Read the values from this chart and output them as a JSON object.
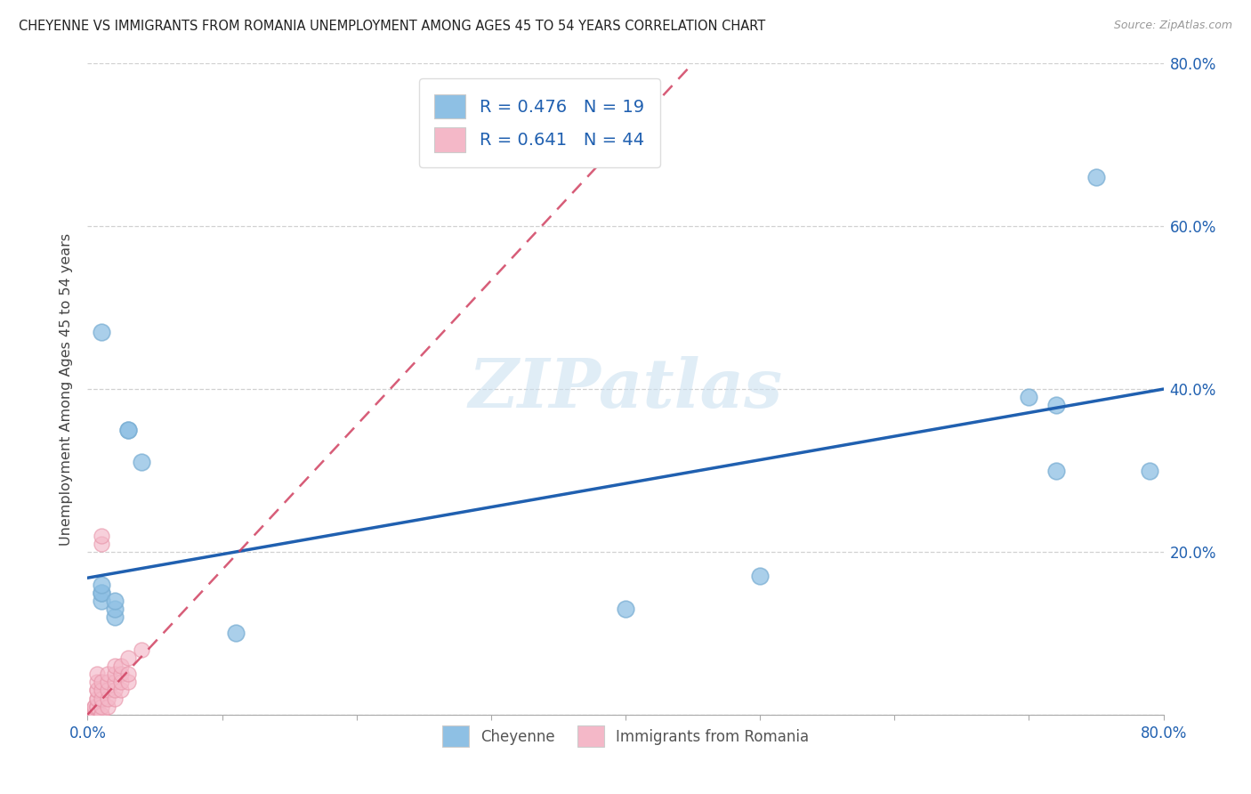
{
  "title": "CHEYENNE VS IMMIGRANTS FROM ROMANIA UNEMPLOYMENT AMONG AGES 45 TO 54 YEARS CORRELATION CHART",
  "source": "Source: ZipAtlas.com",
  "ylabel": "Unemployment Among Ages 45 to 54 years",
  "xlim": [
    0.0,
    0.8
  ],
  "ylim": [
    0.0,
    0.8
  ],
  "cheyenne_color": "#8ec0e4",
  "cheyenne_edge": "#7bafd4",
  "romania_color": "#f4b8c8",
  "romania_edge": "#e896aa",
  "trend_cheyenne_color": "#2060b0",
  "trend_romania_color": "#d04060",
  "legend_text_color": "#2060b0",
  "legend_R_cheyenne": "0.476",
  "legend_N_cheyenne": "19",
  "legend_R_romania": "0.641",
  "legend_N_romania": "44",
  "cheyenne_x": [
    0.01,
    0.01,
    0.01,
    0.01,
    0.01,
    0.02,
    0.02,
    0.02,
    0.03,
    0.03,
    0.04,
    0.11,
    0.4,
    0.5,
    0.7,
    0.72,
    0.72,
    0.75,
    0.79
  ],
  "cheyenne_y": [
    0.14,
    0.15,
    0.15,
    0.16,
    0.47,
    0.12,
    0.13,
    0.14,
    0.35,
    0.35,
    0.31,
    0.1,
    0.13,
    0.17,
    0.39,
    0.3,
    0.38,
    0.66,
    0.3
  ],
  "romania_x": [
    0.005,
    0.005,
    0.005,
    0.005,
    0.005,
    0.005,
    0.005,
    0.005,
    0.005,
    0.005,
    0.007,
    0.007,
    0.007,
    0.007,
    0.007,
    0.007,
    0.007,
    0.007,
    0.01,
    0.01,
    0.01,
    0.01,
    0.01,
    0.01,
    0.01,
    0.01,
    0.015,
    0.015,
    0.015,
    0.015,
    0.015,
    0.02,
    0.02,
    0.02,
    0.02,
    0.02,
    0.025,
    0.025,
    0.025,
    0.025,
    0.03,
    0.03,
    0.03,
    0.04
  ],
  "romania_y": [
    0.0,
    0.0,
    0.0,
    0.0,
    0.0,
    0.0,
    0.005,
    0.005,
    0.01,
    0.01,
    0.01,
    0.01,
    0.02,
    0.02,
    0.03,
    0.03,
    0.04,
    0.05,
    0.0,
    0.0,
    0.01,
    0.02,
    0.03,
    0.04,
    0.21,
    0.22,
    0.01,
    0.02,
    0.03,
    0.04,
    0.05,
    0.02,
    0.03,
    0.04,
    0.05,
    0.06,
    0.03,
    0.04,
    0.05,
    0.06,
    0.04,
    0.05,
    0.07,
    0.08
  ],
  "watermark": "ZIPatlas",
  "background_color": "#ffffff",
  "grid_color": "#cccccc",
  "cheyenne_trend_x0": 0.0,
  "cheyenne_trend_y0": 0.168,
  "cheyenne_trend_x1": 0.8,
  "cheyenne_trend_y1": 0.4,
  "romania_trend_x0": 0.0,
  "romania_trend_y0": 0.0,
  "romania_trend_x1": 0.45,
  "romania_trend_y1": 0.8
}
